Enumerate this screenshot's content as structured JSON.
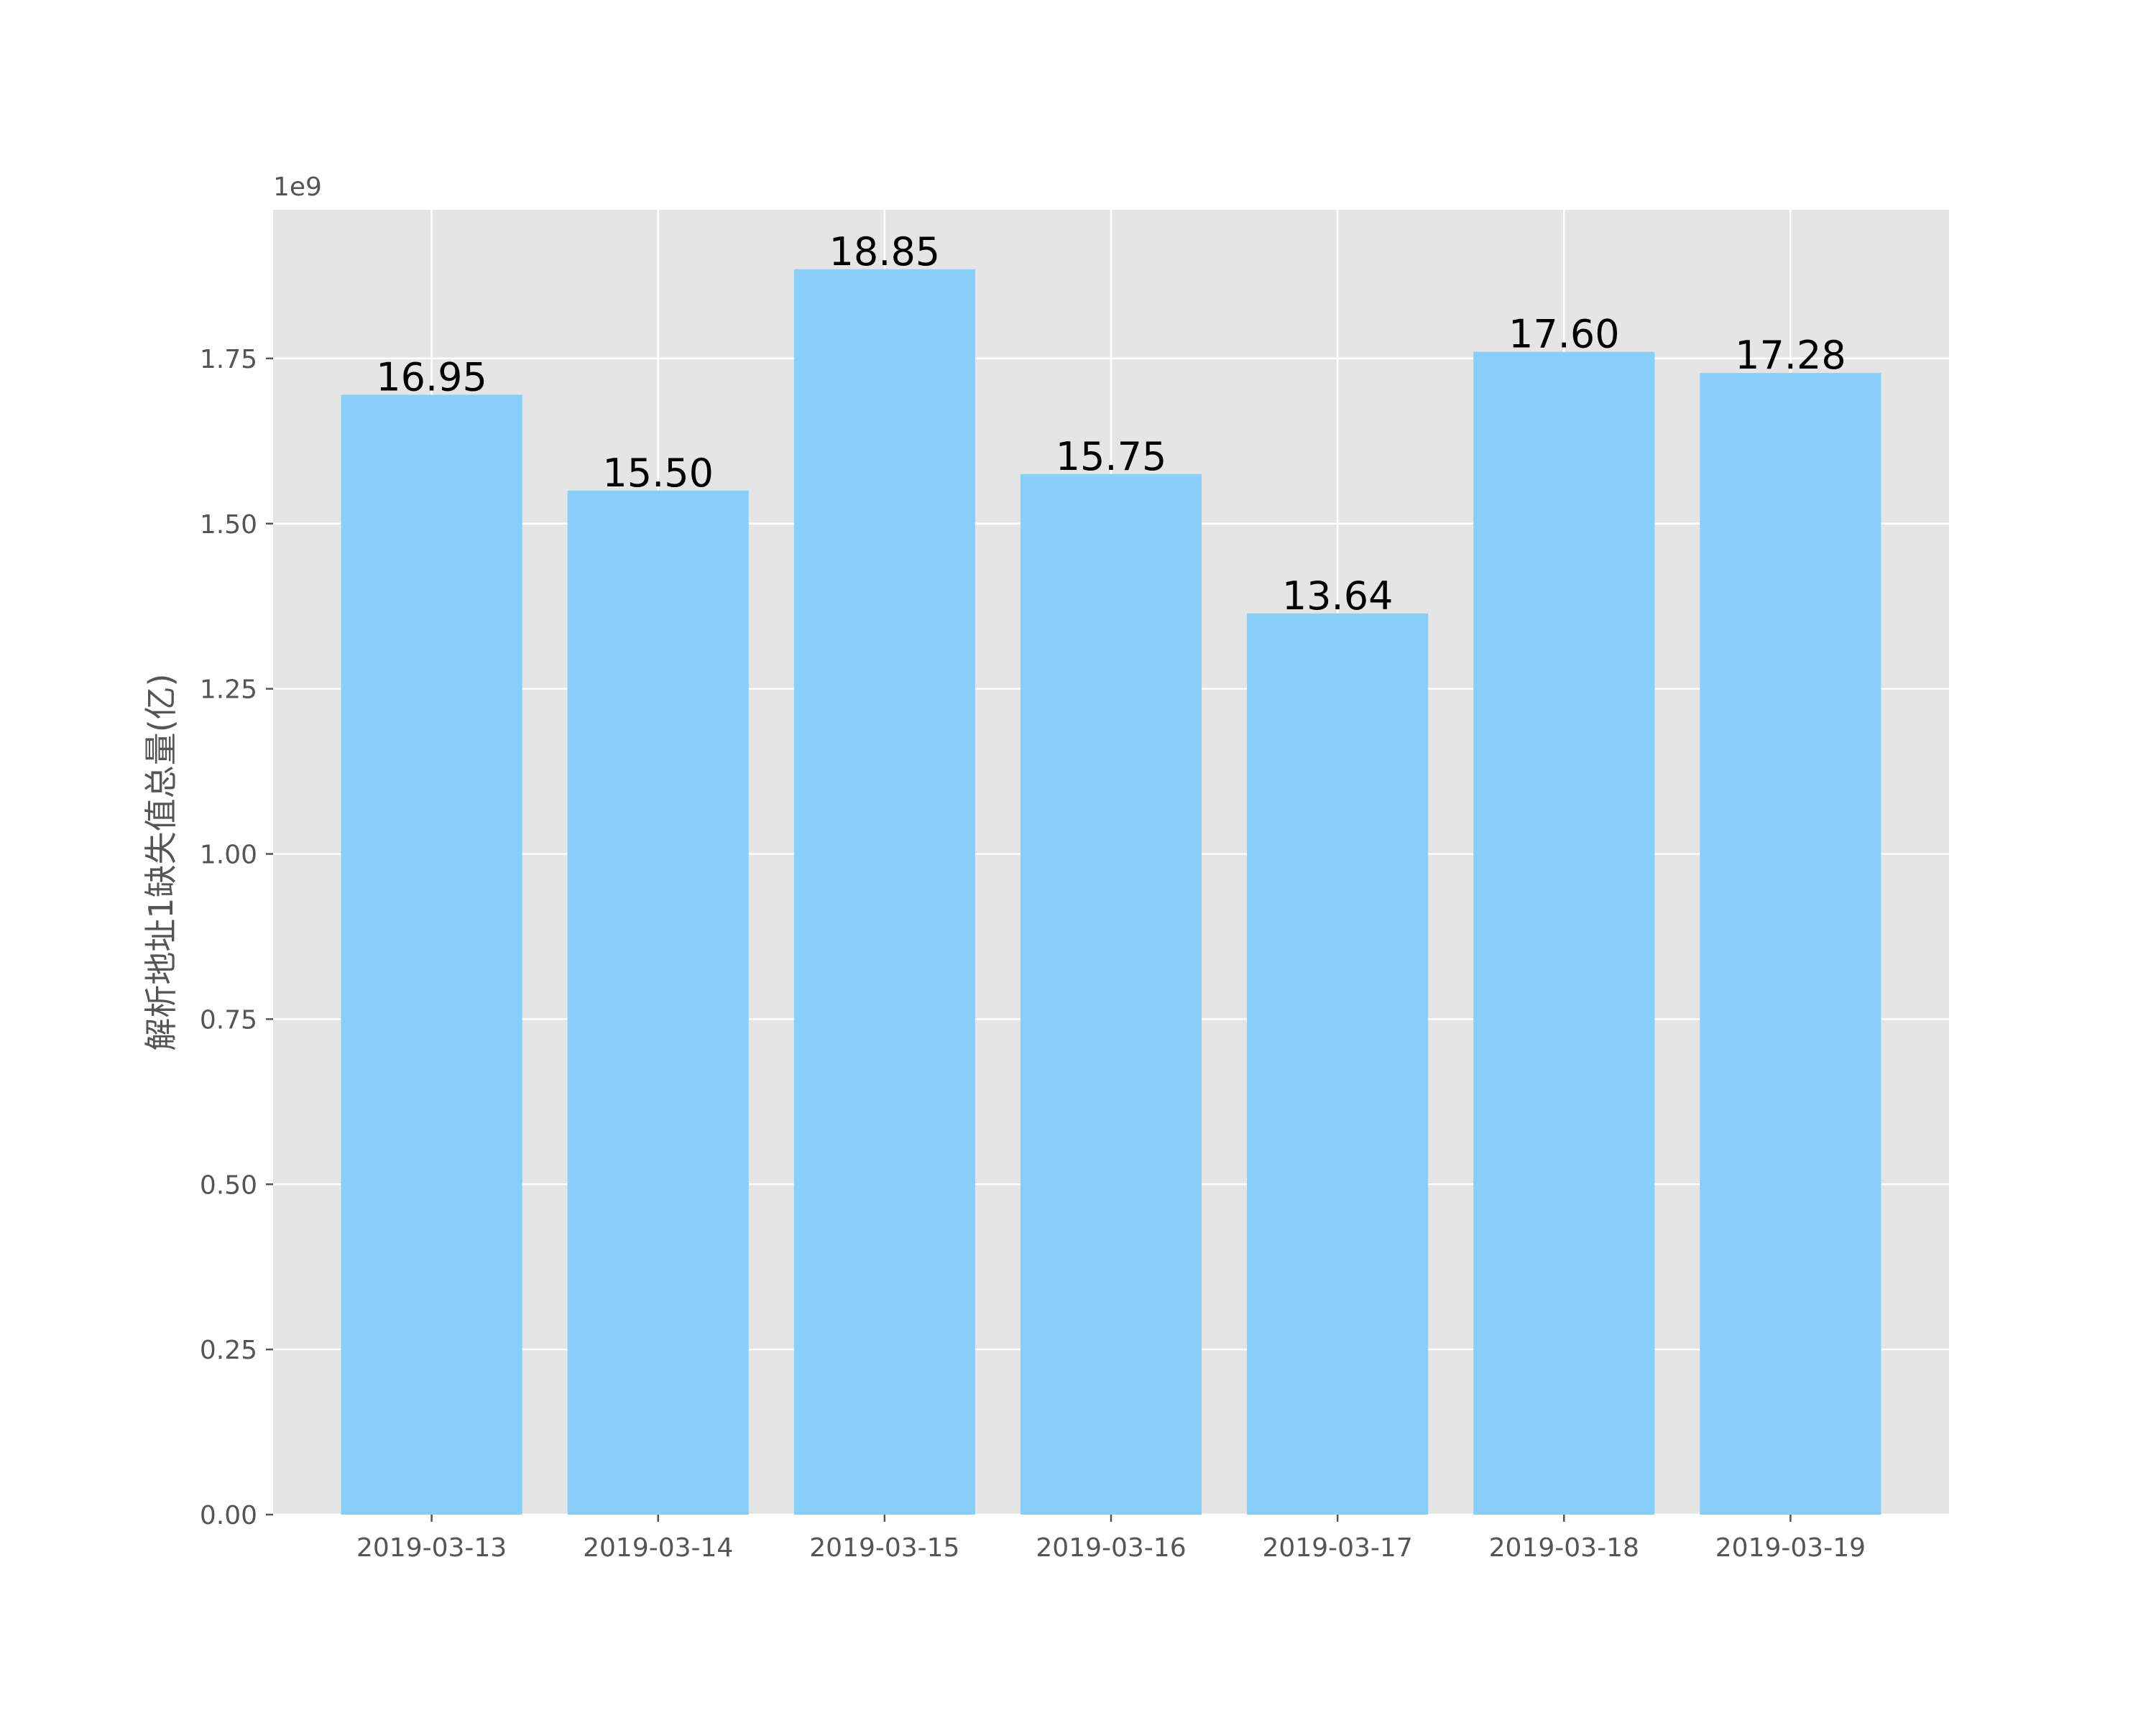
{
  "chart_data": {
    "type": "bar",
    "categories": [
      "2019-03-13",
      "2019-03-14",
      "2019-03-15",
      "2019-03-16",
      "2019-03-17",
      "2019-03-18",
      "2019-03-19"
    ],
    "values": [
      1695000000,
      1550000000,
      1885000000,
      1575000000,
      1364000000,
      1760000000,
      1728000000
    ],
    "data_labels": [
      "16.95",
      "15.50",
      "18.85",
      "15.75",
      "13.64",
      "17.60",
      "17.28"
    ],
    "ylabel": "解析地址1缺失值总量(亿)",
    "xlabel": "",
    "y_offset_text": "1e9",
    "ylim": [
      0,
      1975000000
    ],
    "yticks": [
      0,
      250000000,
      500000000,
      750000000,
      1000000000,
      1250000000,
      1500000000,
      1750000000
    ],
    "ytick_labels": [
      "0.00",
      "0.25",
      "0.50",
      "0.75",
      "1.00",
      "1.25",
      "1.50",
      "1.75"
    ],
    "grid": true,
    "colors": {
      "bar": "#87CEF8",
      "plot_background": "#E5E5E5",
      "grid": "#FFFFFF",
      "tick_text": "#555555",
      "data_label_text": "#000000"
    }
  }
}
